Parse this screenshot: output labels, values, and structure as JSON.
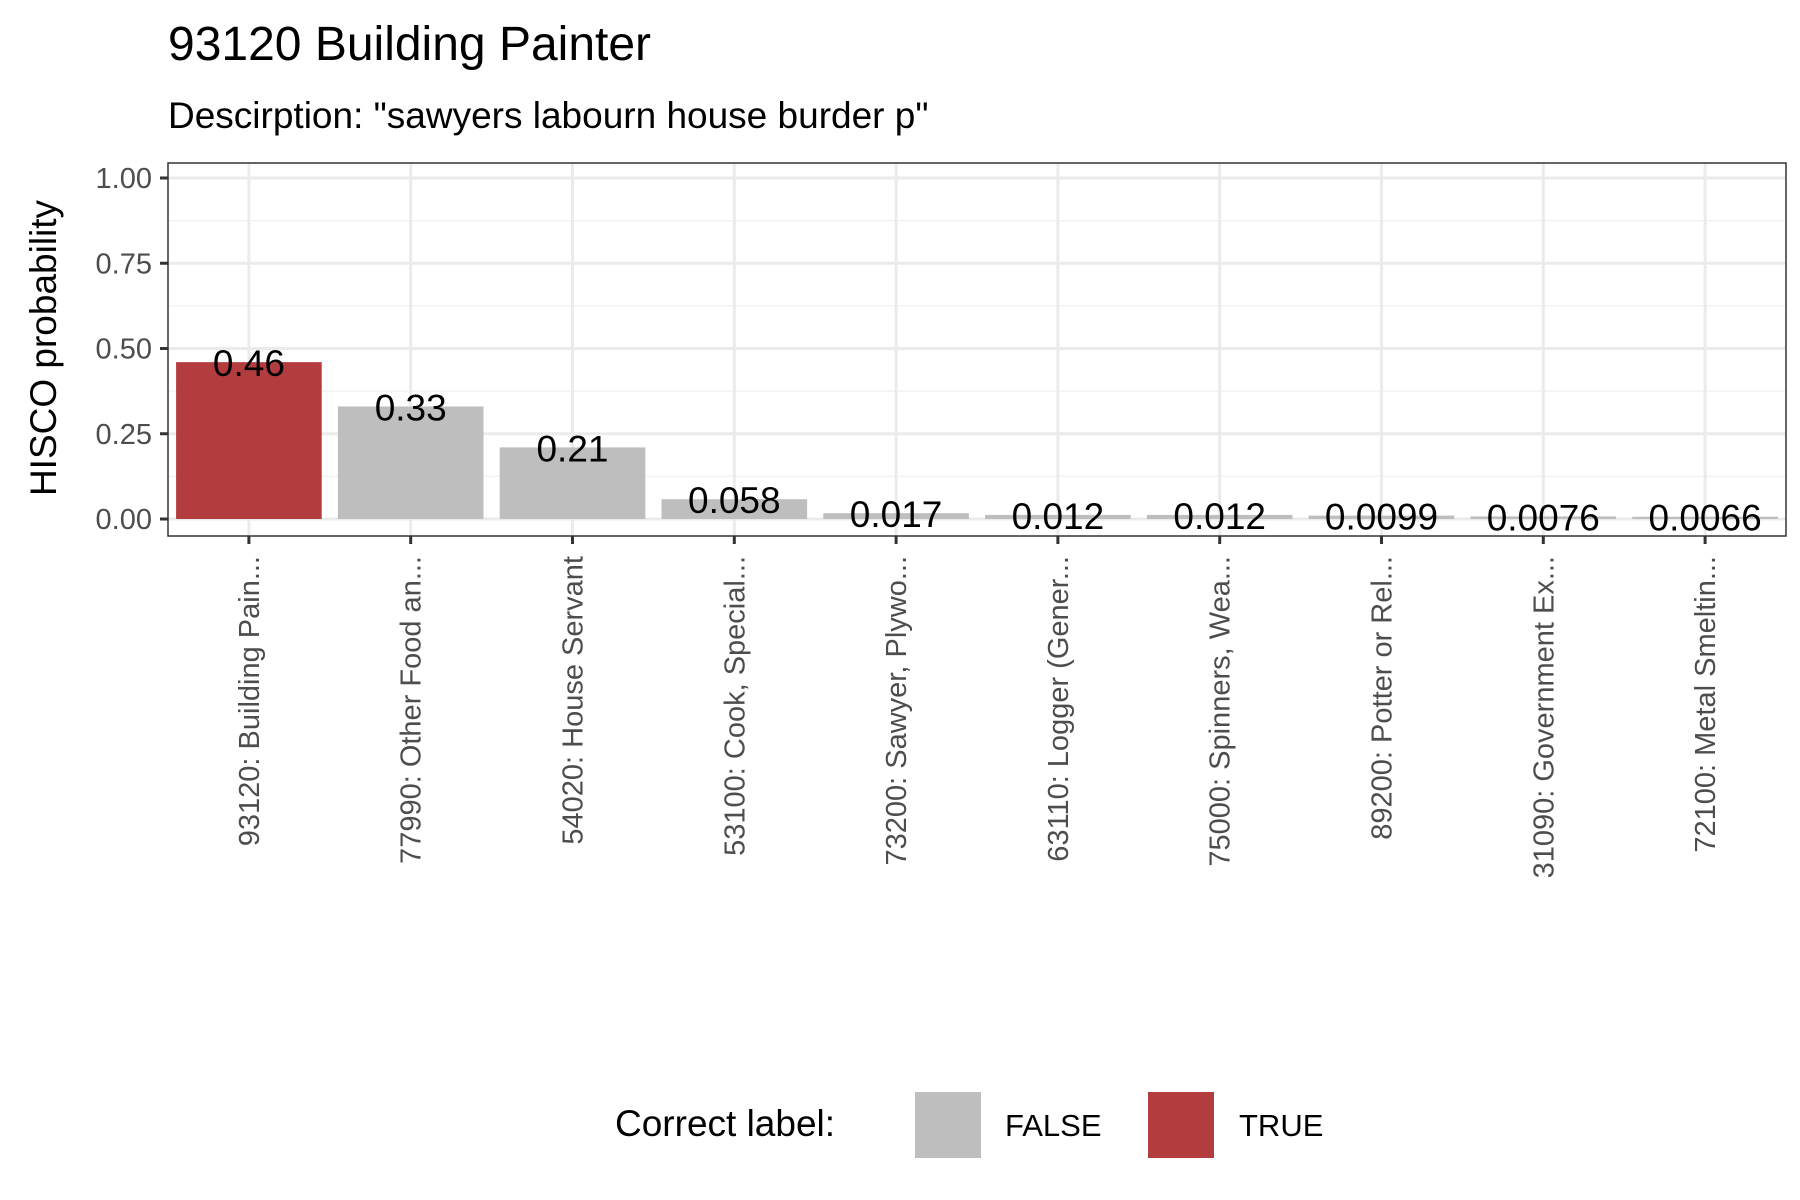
{
  "chart_data": {
    "type": "bar",
    "title": "93120 Building Painter",
    "subtitle": "Descirption: \"sawyers labourn house burder p\"",
    "xlabel": "",
    "ylabel": "HISCO probability",
    "ylim": [
      0,
      1
    ],
    "yticks": [
      "0.00",
      "0.25",
      "0.50",
      "0.75",
      "1.00"
    ],
    "grid": true,
    "categories": [
      "93120: Building Pain...",
      "77990: Other Food an...",
      "54020: House Servant",
      "53100: Cook, Special...",
      "73200: Sawyer, Plywo...",
      "63110: Logger (Gener...",
      "75000: Spinners, Wea...",
      "89200: Potter or Rel...",
      "31090: Government Ex...",
      "72100: Metal Smeltin..."
    ],
    "values": [
      0.46,
      0.33,
      0.21,
      0.058,
      0.017,
      0.012,
      0.012,
      0.0099,
      0.0076,
      0.0066
    ],
    "value_labels": [
      "0.46",
      "0.33",
      "0.21",
      "0.058",
      "0.017",
      "0.012",
      "0.012",
      "0.0099",
      "0.0076",
      "0.0066"
    ],
    "correct": [
      true,
      false,
      false,
      false,
      false,
      false,
      false,
      false,
      false,
      false
    ],
    "legend": {
      "title": "Correct label:",
      "position": "bottom",
      "entries": [
        {
          "label": "FALSE",
          "color": "#bebebe"
        },
        {
          "label": "TRUE",
          "color": "#b33c3e"
        }
      ]
    }
  }
}
